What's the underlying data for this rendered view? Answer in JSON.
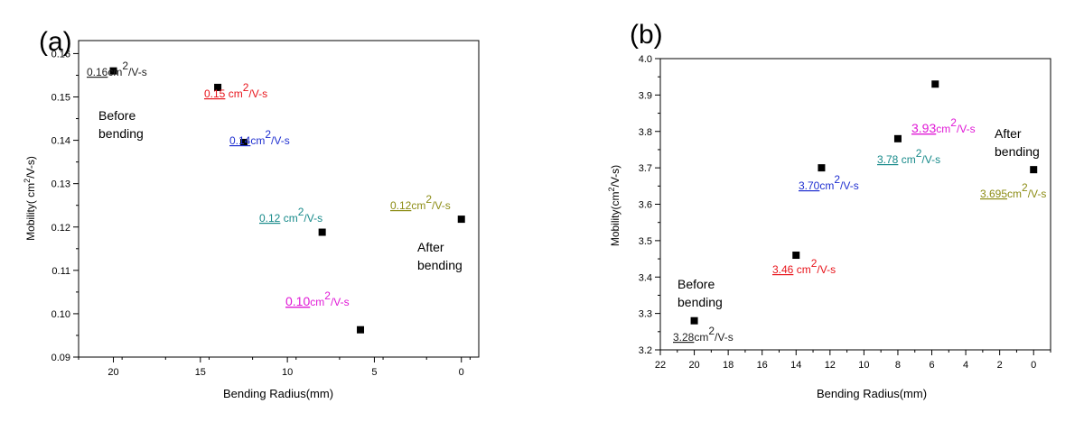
{
  "chart_data": [
    {
      "type": "scatter",
      "panel_label": "(a)",
      "xlabel": "Bending Radius(mm)",
      "ylabel_main": "Mobility( cm",
      "ylabel_sup": "2",
      "ylabel_tail": "/V-s)",
      "xlim": [
        22,
        -1
      ],
      "ylim": [
        0.09,
        0.163
      ],
      "x_reversed": true,
      "xticks": [
        20,
        15,
        10,
        5,
        0
      ],
      "yticks": [
        0.09,
        0.1,
        0.11,
        0.12,
        0.13,
        0.14,
        0.15,
        0.16
      ],
      "ytick_labels": [
        "0.09",
        "0.10",
        "0.11",
        "0.12",
        "0.13",
        "0.14",
        "0.15",
        "0.16"
      ],
      "points": [
        {
          "x": 20,
          "y": 0.156
        },
        {
          "x": 14,
          "y": 0.1522
        },
        {
          "x": 12.5,
          "y": 0.1395
        },
        {
          "x": 8,
          "y": 0.1188
        },
        {
          "x": 5.8,
          "y": 0.0963
        },
        {
          "x": 0,
          "y": 0.1218
        }
      ],
      "annotations": [
        {
          "value": "0.16",
          "unit": "cm",
          "sup": "2",
          "tail": "/V-s",
          "color": "#222222"
        },
        {
          "value": "0.15",
          "unit": " cm",
          "sup": "2",
          "tail": "/V-s",
          "color": "#e8141b"
        },
        {
          "value": "0.14",
          "unit": "cm",
          "sup": "2",
          "tail": "/V-s",
          "color": "#1f2fd0"
        },
        {
          "value": "0.12",
          "unit": " cm",
          "sup": "2",
          "tail": "/V-s",
          "color": "#178a8a"
        },
        {
          "value": "0.10",
          "unit": "cm",
          "sup": "2",
          "tail": "/V-s",
          "color": "#e01ad6"
        },
        {
          "value": "0.12",
          "unit": "cm",
          "sup": "2",
          "tail": "/V-s",
          "color": "#8c8c14"
        }
      ],
      "notes": [
        {
          "line1": "Before",
          "line2": "bending"
        },
        {
          "line1": "After",
          "line2": "bending"
        }
      ]
    },
    {
      "type": "scatter",
      "panel_label": "(b)",
      "xlabel": "Bending Radius(mm)",
      "ylabel_main": "Mobility(",
      "ylabel_mid": "cm",
      "ylabel_sup": "2",
      "ylabel_tail": "/V-s",
      "ylabel_close": ")",
      "xlim": [
        22,
        -1
      ],
      "ylim": [
        3.2,
        4.0
      ],
      "x_reversed": true,
      "xticks": [
        22,
        20,
        18,
        16,
        14,
        12,
        10,
        8,
        6,
        4,
        2,
        0
      ],
      "yticks": [
        3.2,
        3.3,
        3.4,
        3.5,
        3.6,
        3.7,
        3.8,
        3.9,
        4.0
      ],
      "ytick_labels": [
        "3.2",
        "3.3",
        "3.4",
        "3.5",
        "3.6",
        "3.7",
        "3.8",
        "3.9",
        "4.0"
      ],
      "points": [
        {
          "x": 20,
          "y": 3.28
        },
        {
          "x": 14,
          "y": 3.46
        },
        {
          "x": 12.5,
          "y": 3.7
        },
        {
          "x": 8,
          "y": 3.78
        },
        {
          "x": 5.8,
          "y": 3.93
        },
        {
          "x": 0,
          "y": 3.695
        }
      ],
      "annotations": [
        {
          "value": "3.28",
          "unit": "cm",
          "sup": "2",
          "tail": "/V-s",
          "color": "#222222"
        },
        {
          "value": "3.46",
          "unit": " cm",
          "sup": "2",
          "tail": "/V-s",
          "color": "#e8141b"
        },
        {
          "value": "3.70",
          "unit": "cm",
          "sup": "2",
          "tail": "/V-s",
          "color": "#1f2fd0"
        },
        {
          "value": "3.78",
          "unit": " cm",
          "sup": "2",
          "tail": "/V-s",
          "color": "#178a8a"
        },
        {
          "value": "3.93",
          "unit": "cm",
          "sup": "2",
          "tail": "/V-s",
          "color": "#e01ad6"
        },
        {
          "value": "3.695",
          "unit": "cm",
          "sup": "2",
          "tail": "/V-s",
          "color": "#8c8c14"
        }
      ],
      "notes": [
        {
          "line1": "Before",
          "line2": "bending"
        },
        {
          "line1": "After",
          "line2": "bending"
        }
      ]
    }
  ]
}
